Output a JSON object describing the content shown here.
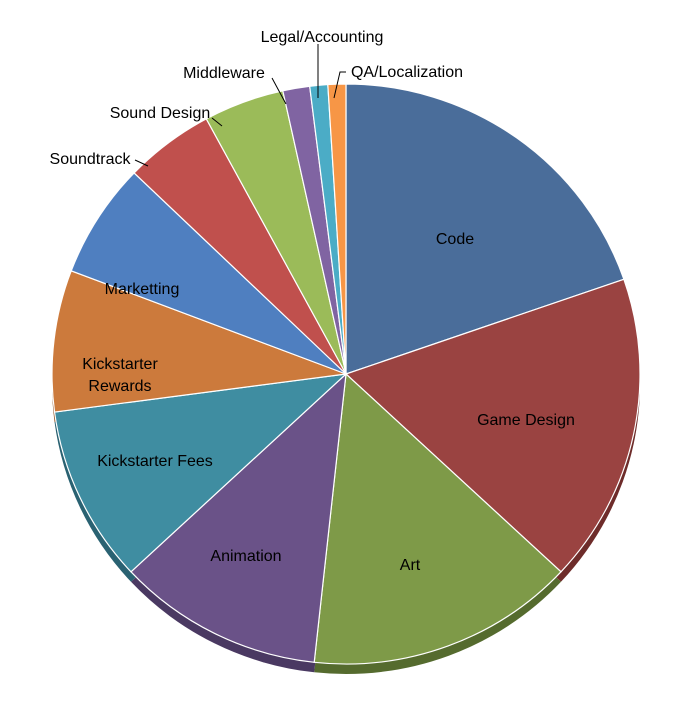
{
  "chart_data": {
    "type": "pie",
    "title": "",
    "categories": [
      "Code",
      "Game Design",
      "Art",
      "Animation",
      "Kickstarter Fees",
      "Kickstarter Rewards",
      "Marketting",
      "Soundtrack",
      "Sound Design",
      "Middleware",
      "Legal/Accounting",
      "QA/Localization"
    ],
    "label_lines": [
      [
        "Code"
      ],
      [
        "Game Design"
      ],
      [
        "Art"
      ],
      [
        "Animation"
      ],
      [
        "Kickstarter Fees"
      ],
      [
        "Kickstarter",
        "Rewards"
      ],
      [
        "Marketting"
      ],
      [
        "Soundtrack"
      ],
      [
        "Sound Design"
      ],
      [
        "Middleware"
      ],
      [
        "Legal/Accounting"
      ],
      [
        "QA/Localization"
      ]
    ],
    "values": [
      20.0,
      17.5,
      15.0,
      11.5,
      10.0,
      8.0,
      6.5,
      5.0,
      4.5,
      1.5,
      1.0,
      1.0
    ],
    "unit": "percent",
    "colors": [
      "#4A6D9A",
      "#9A4341",
      "#7E9A48",
      "#6A5288",
      "#3F8DA1",
      "#CC7A3C",
      "#4F7FC0",
      "#C0504D",
      "#9BBB59",
      "#8064A2",
      "#4BACC6",
      "#F79646"
    ],
    "side_colors": [
      "#2E4A6E",
      "#6E2C2A",
      "#556B2E",
      "#4A3962",
      "#2A6272",
      "#8F5427",
      "#35598A",
      "#8A3533",
      "#6C8438",
      "#5A4673",
      "#33788A",
      "#AF6A30"
    ],
    "legend": "none",
    "label_placement": "inside-and-outside-with-leaders"
  }
}
